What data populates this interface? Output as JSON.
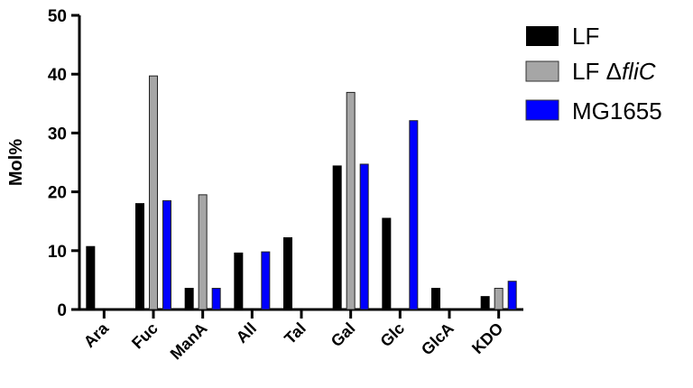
{
  "chart_data": {
    "type": "bar",
    "ylabel": "Mol%",
    "xlabel": "",
    "ylim": [
      0,
      50
    ],
    "yticks": [
      0,
      10,
      20,
      30,
      40,
      50
    ],
    "categories": [
      "Ara",
      "Fuc",
      "ManA",
      "All",
      "Tal",
      "Gal",
      "Glc",
      "GlcA",
      "KDO"
    ],
    "legend_position": "top-right",
    "grid": false,
    "series": [
      {
        "name": "LF",
        "color": "#000000",
        "values": [
          10.7,
          18.0,
          3.6,
          9.6,
          12.2,
          24.4,
          15.5,
          3.6,
          2.2
        ]
      },
      {
        "name": "LF ΔfliC",
        "name_prefix": "LF Δ",
        "name_italic": "fliC",
        "color": "#a6a6a6",
        "values": [
          0,
          39.7,
          19.5,
          0,
          0,
          36.9,
          0,
          0,
          3.6
        ]
      },
      {
        "name": "MG1655",
        "color": "#0000ff",
        "values": [
          0,
          18.5,
          3.6,
          9.8,
          0,
          24.7,
          32.1,
          0,
          4.8
        ]
      }
    ]
  }
}
